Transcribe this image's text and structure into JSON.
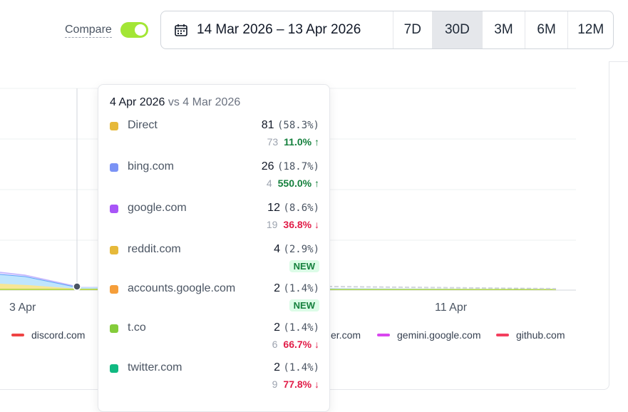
{
  "toolbar": {
    "compare_label": "Compare",
    "compare_enabled": true,
    "date_range": "14 Mar 2026 – 13 Apr 2026",
    "periods": [
      "7D",
      "30D",
      "3M",
      "6M",
      "12M"
    ],
    "active_period": "30D"
  },
  "chart": {
    "x_ticks": [
      "3 Apr",
      "11 Apr"
    ],
    "legend": [
      {
        "label": "discord.com",
        "color": "#ef4444"
      },
      {
        "label": "er.com",
        "color": "#60a5fa"
      },
      {
        "label": "gemini.google.com",
        "color": "#d946ef"
      },
      {
        "label": "github.com",
        "color": "#f43f5e"
      }
    ]
  },
  "tooltip": {
    "date": "4 Apr 2026",
    "vs_label": "vs 4 Mar 2026",
    "rows": [
      {
        "name": "Direct",
        "color": "#e6b93a",
        "value": "81",
        "pct": "(58.3%)",
        "prev": "73",
        "change": "11.0% ↑",
        "dir": "up"
      },
      {
        "name": "bing.com",
        "color": "#7b93f5",
        "value": "26",
        "pct": "(18.7%)",
        "prev": "4",
        "change": "550.0% ↑",
        "dir": "up"
      },
      {
        "name": "google.com",
        "color": "#a855f7",
        "value": "12",
        "pct": "(8.6%)",
        "prev": "19",
        "change": "36.8% ↓",
        "dir": "down"
      },
      {
        "name": "reddit.com",
        "color": "#e6b93a",
        "value": "4",
        "pct": "(2.9%)",
        "prev": "",
        "change": "NEW",
        "dir": "new"
      },
      {
        "name": "accounts.google.com",
        "color": "#f59e3a",
        "value": "2",
        "pct": "(1.4%)",
        "prev": "",
        "change": "NEW",
        "dir": "new"
      },
      {
        "name": "t.co",
        "color": "#84cc3a",
        "value": "2",
        "pct": "(1.4%)",
        "prev": "6",
        "change": "66.7% ↓",
        "dir": "down"
      },
      {
        "name": "twitter.com",
        "color": "#10b981",
        "value": "2",
        "pct": "(1.4%)",
        "prev": "9",
        "change": "77.8% ↓",
        "dir": "down"
      }
    ]
  }
}
